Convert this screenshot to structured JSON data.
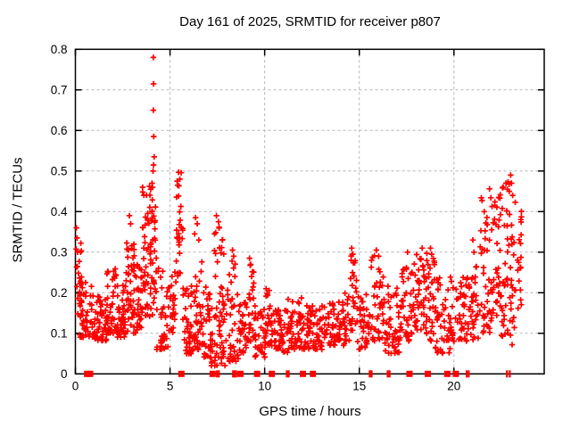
{
  "chart_data": {
    "type": "scatter",
    "title": "Day 161 of 2025, SRMTID for receiver p807",
    "xlabel": "GPS time / hours",
    "ylabel": "SRMTID / TECUs",
    "xlim": [
      0,
      24.77
    ],
    "ylim": [
      0,
      0.8
    ],
    "xticks": [
      0,
      5,
      10,
      15,
      20
    ],
    "xtick_labels": [
      "0",
      "5",
      "10",
      "15",
      "20"
    ],
    "yticks": [
      0,
      0.1,
      0.2,
      0.3,
      0.4,
      0.5,
      0.6,
      0.7,
      0.8
    ],
    "ytick_labels": [
      "0",
      "0.1",
      "0.2",
      "0.3",
      "0.4",
      "0.5",
      "0.6",
      "0.7",
      "0.8"
    ],
    "grid": true,
    "legend": "none",
    "marker": "plus",
    "marker_color": "#ff0000",
    "grid_color": "#b4b4b4",
    "axis_color": "#000000",
    "background_color": "#ffffff",
    "bands_format": "[hour_start, hour_end, point_count, value_min, value_max, low_skew]",
    "density_bands": [
      [
        0.02,
        0.35,
        22,
        0.14,
        0.34,
        1.3
      ],
      [
        0.15,
        0.95,
        45,
        0.09,
        0.23,
        1.6
      ],
      [
        0.95,
        1.65,
        50,
        0.08,
        0.2,
        1.5
      ],
      [
        1.65,
        2.15,
        42,
        0.1,
        0.26,
        1.4
      ],
      [
        2.15,
        2.62,
        40,
        0.09,
        0.22,
        1.5
      ],
      [
        2.62,
        3.12,
        48,
        0.1,
        0.33,
        1.6
      ],
      [
        3.12,
        3.48,
        28,
        0.1,
        0.28,
        1.4
      ],
      [
        3.48,
        3.78,
        26,
        0.13,
        0.46,
        1.2
      ],
      [
        3.78,
        4.28,
        55,
        0.14,
        0.47,
        1.1
      ],
      [
        4.28,
        5.12,
        45,
        0.06,
        0.27,
        1.7
      ],
      [
        5.12,
        5.34,
        14,
        0.1,
        0.3,
        1.3
      ],
      [
        5.34,
        5.68,
        26,
        0.24,
        0.5,
        1.1
      ],
      [
        5.68,
        6.22,
        42,
        0.05,
        0.22,
        1.5
      ],
      [
        6.22,
        6.72,
        40,
        0.06,
        0.3,
        1.7
      ],
      [
        6.72,
        7.18,
        32,
        0.04,
        0.22,
        1.5
      ],
      [
        7.18,
        7.98,
        50,
        0.02,
        0.22,
        1.5
      ],
      [
        7.3,
        7.95,
        12,
        0.24,
        0.37,
        1.2
      ],
      [
        7.98,
        8.62,
        40,
        0.03,
        0.28,
        1.8
      ],
      [
        8.62,
        9.02,
        28,
        0.05,
        0.18,
        1.4
      ],
      [
        9.02,
        9.48,
        30,
        0.08,
        0.27,
        1.3
      ],
      [
        9.48,
        10.02,
        34,
        0.04,
        0.17,
        1.4
      ],
      [
        10.02,
        10.32,
        20,
        0.07,
        0.21,
        1.4
      ],
      [
        10.32,
        11.22,
        55,
        0.05,
        0.165,
        1.3
      ],
      [
        11.22,
        12.22,
        60,
        0.06,
        0.19,
        1.5
      ],
      [
        12.22,
        13.32,
        65,
        0.06,
        0.17,
        1.4
      ],
      [
        13.32,
        14.22,
        55,
        0.07,
        0.185,
        1.4
      ],
      [
        14.22,
        14.48,
        15,
        0.08,
        0.2,
        1.3
      ],
      [
        14.48,
        14.88,
        24,
        0.1,
        0.3,
        1.2
      ],
      [
        14.88,
        15.52,
        35,
        0.06,
        0.2,
        1.4
      ],
      [
        15.52,
        16.32,
        45,
        0.08,
        0.3,
        1.6
      ],
      [
        16.32,
        17.12,
        45,
        0.05,
        0.22,
        1.5
      ],
      [
        17.12,
        17.82,
        45,
        0.08,
        0.28,
        1.5
      ],
      [
        17.82,
        18.52,
        45,
        0.1,
        0.3,
        1.4
      ],
      [
        18.52,
        19.02,
        35,
        0.08,
        0.3,
        1.4
      ],
      [
        19.02,
        19.82,
        45,
        0.05,
        0.24,
        1.5
      ],
      [
        19.82,
        20.62,
        42,
        0.08,
        0.24,
        1.4
      ],
      [
        20.62,
        21.32,
        40,
        0.08,
        0.31,
        1.5
      ],
      [
        21.32,
        21.95,
        38,
        0.1,
        0.44,
        1.6
      ],
      [
        21.95,
        22.45,
        40,
        0.11,
        0.46,
        1.4
      ],
      [
        22.45,
        23.05,
        45,
        0.09,
        0.48,
        1.2
      ],
      [
        23.05,
        23.6,
        32,
        0.07,
        0.43,
        1.3
      ]
    ],
    "outlier_points": [
      [
        0.05,
        0.36
      ],
      [
        0.09,
        0.335
      ],
      [
        0.12,
        0.3
      ],
      [
        2.85,
        0.39
      ],
      [
        2.92,
        0.37
      ],
      [
        3.55,
        0.46
      ],
      [
        3.62,
        0.44
      ],
      [
        4.12,
        0.78
      ],
      [
        4.13,
        0.715
      ],
      [
        4.12,
        0.65
      ],
      [
        4.14,
        0.585
      ],
      [
        4.16,
        0.535
      ],
      [
        4.13,
        0.515
      ],
      [
        4.1,
        0.5
      ],
      [
        4.05,
        0.47
      ],
      [
        3.98,
        0.455
      ],
      [
        5.45,
        0.497
      ],
      [
        5.52,
        0.48
      ],
      [
        5.4,
        0.465
      ],
      [
        6.35,
        0.385
      ],
      [
        6.44,
        0.37
      ],
      [
        6.3,
        0.345
      ],
      [
        6.52,
        0.33
      ],
      [
        7.45,
        0.39
      ],
      [
        7.56,
        0.375
      ],
      [
        7.35,
        0.345
      ],
      [
        7.76,
        0.33
      ],
      [
        7.62,
        0.31
      ],
      [
        8.3,
        0.305
      ],
      [
        8.36,
        0.29
      ],
      [
        9.2,
        0.285
      ],
      [
        9.26,
        0.27
      ],
      [
        10.08,
        0.21
      ],
      [
        14.6,
        0.31
      ],
      [
        14.66,
        0.295
      ],
      [
        15.9,
        0.305
      ],
      [
        16.02,
        0.29
      ],
      [
        17.55,
        0.3
      ],
      [
        18.32,
        0.31
      ],
      [
        18.76,
        0.31
      ],
      [
        18.82,
        0.295
      ],
      [
        21.0,
        0.33
      ],
      [
        21.06,
        0.3
      ],
      [
        21.88,
        0.456
      ],
      [
        21.95,
        0.434
      ],
      [
        21.6,
        0.4
      ],
      [
        22.6,
        0.46
      ],
      [
        22.75,
        0.47
      ],
      [
        22.82,
        0.455
      ],
      [
        23.0,
        0.49
      ],
      [
        23.04,
        0.47
      ],
      [
        23.1,
        0.44
      ]
    ],
    "zero_markers": {
      "squares": [
        0.62,
        0.78,
        5.6,
        7.25,
        8.72,
        9.6,
        10.38,
        12.02,
        12.55,
        17.65,
        18.62,
        19.65,
        20.1
      ],
      "ticks": [
        7.48,
        7.58,
        8.33,
        8.41,
        8.49,
        11.17,
        11.27,
        15.55,
        15.65,
        16.5,
        16.6,
        20.67,
        20.78,
        22.8,
        22.95
      ]
    }
  }
}
